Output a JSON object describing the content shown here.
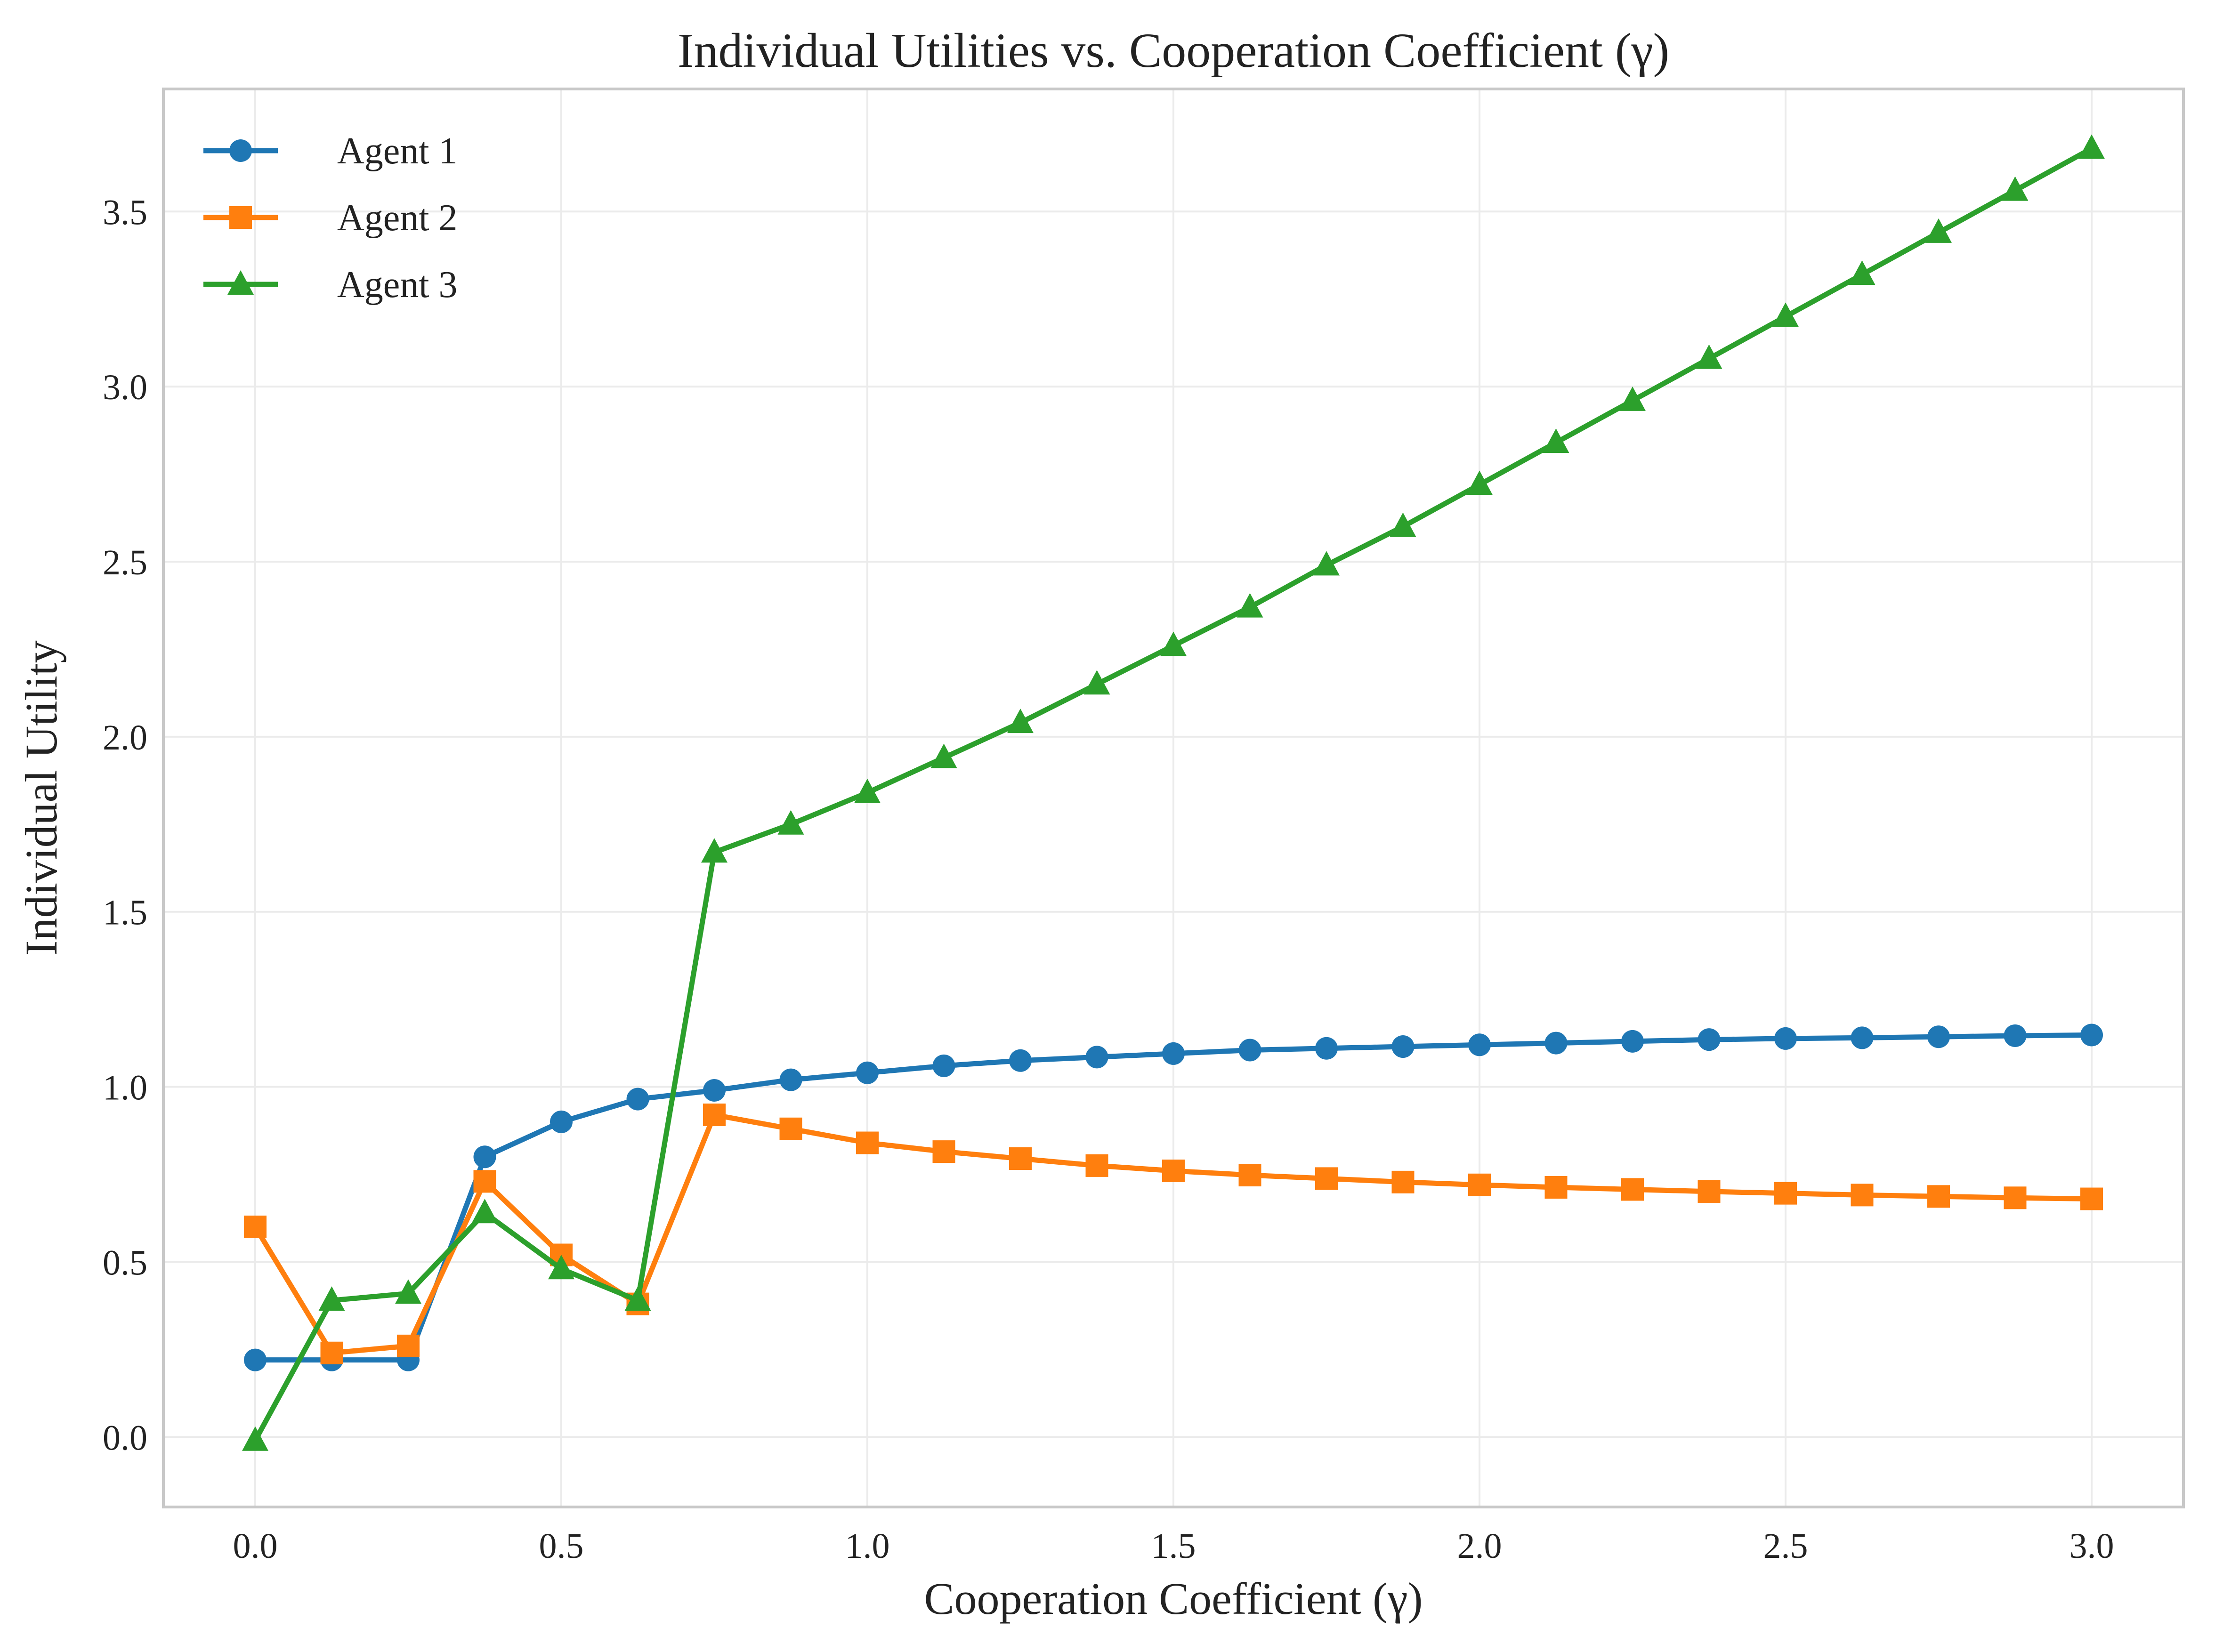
{
  "chart_data": {
    "type": "line",
    "title": "Individual Utilities vs. Cooperation Coefficient (γ)",
    "xlabel": "Cooperation Coefficient (γ)",
    "ylabel": "Individual Utility",
    "xlim": [
      -0.15,
      3.15
    ],
    "ylim": [
      -0.2,
      3.85
    ],
    "xticks": [
      0.0,
      0.5,
      1.0,
      1.5,
      2.0,
      2.5,
      3.0
    ],
    "xtick_labels": [
      "0.0",
      "0.5",
      "1.0",
      "1.5",
      "2.0",
      "2.5",
      "3.0"
    ],
    "yticks": [
      0.0,
      0.5,
      1.0,
      1.5,
      2.0,
      2.5,
      3.0,
      3.5
    ],
    "ytick_labels": [
      "0.0",
      "0.5",
      "1.0",
      "1.5",
      "2.0",
      "2.5",
      "3.0",
      "3.5"
    ],
    "grid": true,
    "legend_position": "top-left",
    "x": [
      0.0,
      0.125,
      0.25,
      0.375,
      0.5,
      0.625,
      0.75,
      0.875,
      1.0,
      1.125,
      1.25,
      1.375,
      1.5,
      1.625,
      1.75,
      1.875,
      2.0,
      2.125,
      2.25,
      2.375,
      2.5,
      2.625,
      2.75,
      2.875,
      3.0
    ],
    "series": [
      {
        "name": "Agent 1",
        "color": "#1f77b4",
        "marker": "circle",
        "values": [
          0.22,
          0.22,
          0.22,
          0.8,
          0.9,
          0.965,
          0.99,
          1.02,
          1.04,
          1.06,
          1.075,
          1.085,
          1.095,
          1.105,
          1.11,
          1.115,
          1.12,
          1.125,
          1.13,
          1.135,
          1.138,
          1.14,
          1.143,
          1.146,
          1.148
        ]
      },
      {
        "name": "Agent 2",
        "color": "#ff7f0e",
        "marker": "square",
        "values": [
          0.6,
          0.24,
          0.26,
          0.73,
          0.52,
          0.38,
          0.92,
          0.88,
          0.84,
          0.815,
          0.795,
          0.775,
          0.76,
          0.748,
          0.738,
          0.728,
          0.72,
          0.713,
          0.707,
          0.701,
          0.696,
          0.691,
          0.687,
          0.683,
          0.68
        ]
      },
      {
        "name": "Agent 3",
        "color": "#2ca02c",
        "marker": "triangle",
        "values": [
          -0.01,
          0.39,
          0.41,
          0.64,
          0.48,
          0.39,
          1.67,
          1.75,
          1.84,
          1.94,
          2.04,
          2.15,
          2.26,
          2.37,
          2.49,
          2.6,
          2.72,
          2.84,
          2.96,
          3.08,
          3.2,
          3.32,
          3.44,
          3.56,
          3.68
        ]
      }
    ]
  }
}
